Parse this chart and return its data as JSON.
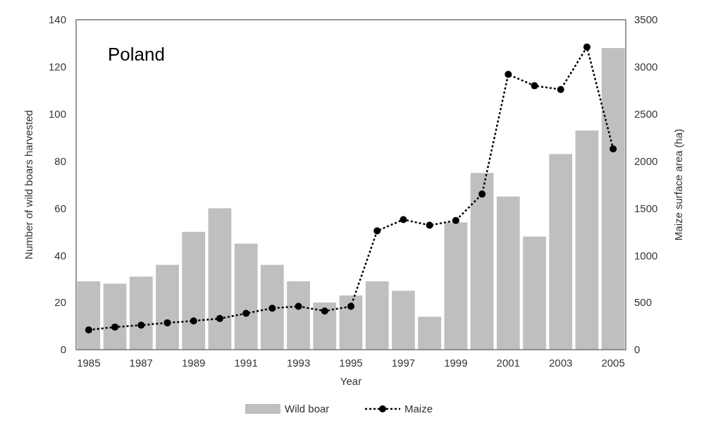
{
  "chart_data": {
    "type": "bar",
    "xlabel": "Year",
    "ylabel": "Number of wild boars harvested",
    "y2label": "Maize surface area (ha)",
    "annotations": [
      "Poland"
    ],
    "categories": [
      "1985",
      null,
      "1987",
      null,
      "1989",
      null,
      "1991",
      null,
      "1993",
      null,
      "1995",
      null,
      "1997",
      null,
      "1999",
      null,
      "2001",
      null,
      "2003",
      null,
      "2005"
    ],
    "series": [
      {
        "name": "Wild boar",
        "color": "#bfbfbf",
        "values": [
          29,
          28,
          31,
          36,
          50,
          60,
          45,
          36,
          29,
          20,
          23,
          29,
          25,
          14,
          54,
          75,
          65,
          48,
          83,
          93,
          128
        ]
      },
      {
        "name": "Maize",
        "type": "line",
        "axis": "y2",
        "color": "#000000",
        "marker": "circle",
        "line_style": "dotted",
        "values": [
          210,
          240,
          260,
          285,
          305,
          330,
          385,
          440,
          460,
          410,
          460,
          1260,
          1380,
          1320,
          1370,
          1650,
          2920,
          2800,
          2760,
          3210,
          2130
        ]
      }
    ],
    "ylim": [
      0,
      140
    ],
    "yticks": [
      0,
      20,
      40,
      60,
      80,
      100,
      120,
      140
    ],
    "y2lim": [
      0,
      3500
    ],
    "y2ticks": [
      0,
      500,
      1000,
      1500,
      2000,
      2500,
      3000,
      3500
    ],
    "grid": false,
    "legend": "bottom"
  }
}
